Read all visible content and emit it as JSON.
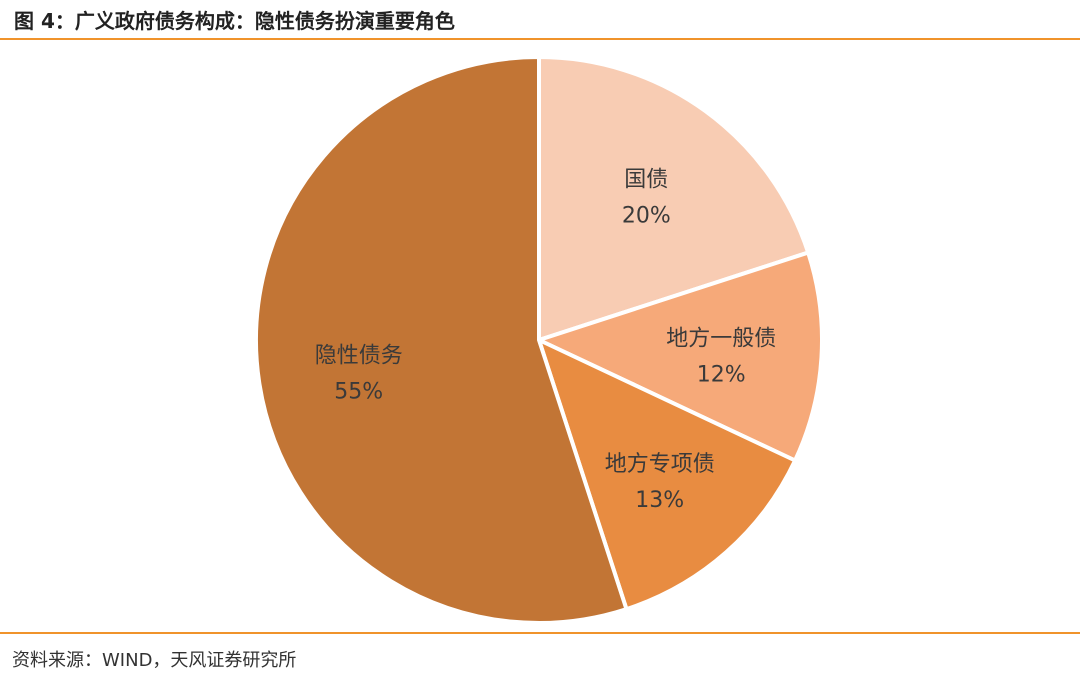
{
  "figure": {
    "title": "图 4：广义政府债务构成：隐性债务扮演重要角色",
    "source": "资料来源：WIND，天风证券研究所"
  },
  "colors": {
    "accent_rule": "#f0932b",
    "slice_border": "#ffffff"
  },
  "chart_data": {
    "type": "pie",
    "title": "",
    "start_angle_deg": 0,
    "direction": "clockwise",
    "slices": [
      {
        "label": "国债",
        "value": 20,
        "value_label": "20%",
        "color": "#f8ccb3"
      },
      {
        "label": "地方一般债",
        "value": 12,
        "value_label": "12%",
        "color": "#f6a979"
      },
      {
        "label": "地方专项债",
        "value": 13,
        "value_label": "13%",
        "color": "#e88c41"
      },
      {
        "label": "隐性债务",
        "value": 55,
        "value_label": "55%",
        "color": "#c27535"
      }
    ]
  }
}
